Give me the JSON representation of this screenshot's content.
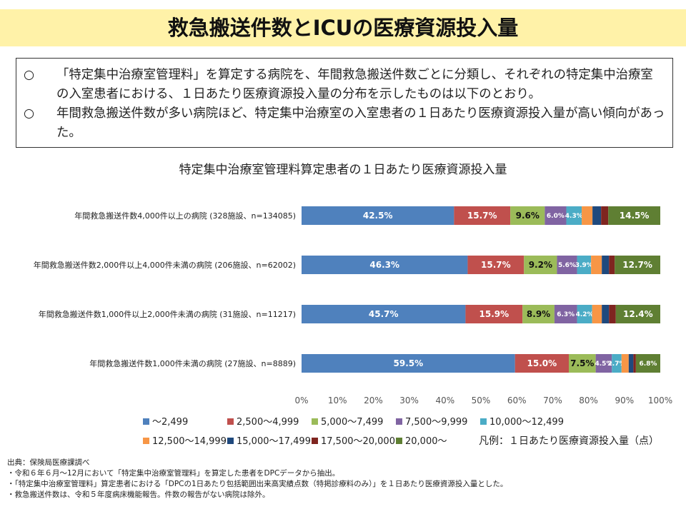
{
  "header": {
    "title": "救急搬送件数とICUの医療資源投入量"
  },
  "summary": [
    {
      "bullet": "○",
      "text": "「特定集中治療室管理料」を算定する病院を、年間救急搬送件数ごとに分類し、それぞれの特定集中治療室の入室患者における、１日あたり医療資源投入量の分布を示したものは以下のとおり。"
    },
    {
      "bullet": "○",
      "text": "年間救急搬送件数が多い病院ほど、特定集中治療室の入室患者の１日あたり医療資源投入量が高い傾向があった。"
    }
  ],
  "chart_data": {
    "type": "bar",
    "orientation": "horizontal",
    "stacked": true,
    "percent_stacked": true,
    "title": "特定集中治療室管理料算定患者の１日あたり医療資源投入量",
    "categories": [
      "年間救急搬送件数4,000件以上の病院 (328施設、n=134085)",
      "年間救急搬送件数2,000件以上4,000件未満の病院 (206施設、n=62002)",
      "年間救急搬送件数1,000件以上2,000件未満の病院 (31施設、n=11217)",
      "年間救急搬送件数1,000件未満の病院 (27施設、n=8889)"
    ],
    "series": [
      {
        "name": "～2,499",
        "color": "#4f81bd",
        "values": [
          42.5,
          46.3,
          45.7,
          59.5
        ],
        "labels": [
          "42.5%",
          "46.3%",
          "45.7%",
          "59.5%"
        ]
      },
      {
        "name": "2,500～4,999",
        "color": "#c0504d",
        "values": [
          15.7,
          15.7,
          15.9,
          15.0
        ],
        "labels": [
          "15.7%",
          "15.7%",
          "15.9%",
          "15.0%"
        ]
      },
      {
        "name": "5,000～7,499",
        "color": "#9bbb59",
        "values": [
          9.6,
          9.2,
          8.9,
          7.5
        ],
        "labels": [
          "9.6%",
          "9.2%",
          "8.9%",
          "7.5%"
        ]
      },
      {
        "name": "7,500～9,999",
        "color": "#8064a2",
        "values": [
          6.0,
          5.6,
          6.3,
          4.5
        ],
        "labels": [
          "6.0%",
          "5.6%",
          "6.3%",
          "4.5%"
        ]
      },
      {
        "name": "10,000～12,499",
        "color": "#4bacc6",
        "values": [
          4.3,
          3.9,
          4.2,
          2.7
        ],
        "labels": [
          "4.3%",
          "3.9%",
          "4.2%",
          "2.7%"
        ]
      },
      {
        "name": "12,500～14,999",
        "color": "#f79646",
        "values": [
          3.0,
          3.0,
          2.7,
          2.0
        ],
        "labels": [
          "",
          "",
          "",
          ""
        ]
      },
      {
        "name": "15,000～17,499",
        "color": "#1f497d",
        "values": [
          2.4,
          2.0,
          2.0,
          1.3
        ],
        "labels": [
          "",
          "",
          "",
          ""
        ]
      },
      {
        "name": "17,500～20,000",
        "color": "#7f2520",
        "values": [
          2.0,
          1.6,
          1.9,
          0.7
        ],
        "labels": [
          "",
          "",
          "",
          ""
        ]
      },
      {
        "name": "20,000～",
        "color": "#5f7f33",
        "values": [
          14.5,
          12.7,
          12.4,
          6.8
        ],
        "labels": [
          "14.5%",
          "12.7%",
          "12.4%",
          "6.8%"
        ]
      }
    ],
    "xlim": [
      0,
      100
    ],
    "xticks": [
      "0%",
      "10%",
      "20%",
      "30%",
      "40%",
      "50%",
      "60%",
      "70%",
      "80%",
      "90%",
      "100%"
    ],
    "legend_position": "bottom"
  },
  "legend_note": "凡例：１日あたり医療資源投入量（点）",
  "footnotes": [
    "出典：保険局医療課調べ",
    "・令和６年６月～12月において「特定集中治療室管理料」を算定した患者をDPCデータから抽出。",
    "・「特定集中治療室管理料」算定患者における「DPCの1日あたり包括範囲出来高実績点数（特掲診療料のみ）」を１日あたり医療資源投入量とした。",
    "・救急搬送件数は、令和５年度病床機能報告。件数の報告がない病院は除外。"
  ]
}
